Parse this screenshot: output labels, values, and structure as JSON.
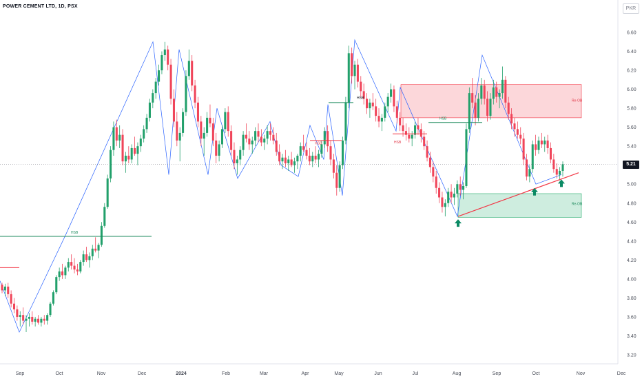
{
  "header": {
    "title": "POWER CEMENT LTD, 1D, PSX",
    "currency": "PKR",
    "last_price_label": "5.21"
  },
  "chart_data": {
    "type": "candlestick",
    "title": "POWER CEMENT LTD, 1D, PSX",
    "y_unit": "PKR",
    "ylim": [
      3.2,
      6.6
    ],
    "y_ticks": [
      "6.60",
      "6.40",
      "6.20",
      "6.00",
      "5.80",
      "5.60",
      "5.40",
      "5.20",
      "5.00",
      "4.80",
      "4.60",
      "4.40",
      "4.20",
      "4.00",
      "3.80",
      "3.60",
      "3.40",
      "3.20"
    ],
    "x_ticks": [
      "Sep",
      "Oct",
      "Nov",
      "Dec",
      "2024",
      "Feb",
      "Mar",
      "Apr",
      "May",
      "Jun",
      "Jul",
      "Aug",
      "Sep",
      "Oct",
      "Nov",
      "Dec"
    ],
    "last_price": 5.21,
    "colors": {
      "up": "#22a06b",
      "down": "#f0455a",
      "zigzag": "#2962ff"
    },
    "ohlc_series": [
      [
        3.94,
        3.96,
        3.85,
        3.88
      ],
      [
        3.88,
        3.95,
        3.82,
        3.92
      ],
      [
        3.92,
        3.96,
        3.8,
        3.84
      ],
      [
        3.84,
        3.88,
        3.7,
        3.74
      ],
      [
        3.74,
        3.8,
        3.64,
        3.68
      ],
      [
        3.68,
        3.72,
        3.56,
        3.6
      ],
      [
        3.6,
        3.66,
        3.5,
        3.62
      ],
      [
        3.62,
        3.7,
        3.52,
        3.56
      ],
      [
        3.56,
        3.62,
        3.44,
        3.58
      ],
      [
        3.58,
        3.64,
        3.5,
        3.6
      ],
      [
        3.6,
        3.66,
        3.52,
        3.55
      ],
      [
        3.55,
        3.6,
        3.5,
        3.58
      ],
      [
        3.58,
        3.62,
        3.52,
        3.54
      ],
      [
        3.54,
        3.6,
        3.5,
        3.58
      ],
      [
        3.58,
        3.62,
        3.52,
        3.56
      ],
      [
        3.56,
        3.64,
        3.52,
        3.62
      ],
      [
        3.62,
        3.76,
        3.6,
        3.74
      ],
      [
        3.74,
        3.88,
        3.72,
        3.86
      ],
      [
        3.86,
        4.04,
        3.84,
        4.02
      ],
      [
        4.02,
        4.12,
        3.98,
        4.08
      ],
      [
        4.08,
        4.16,
        4.0,
        4.04
      ],
      [
        4.04,
        4.14,
        4.0,
        4.12
      ],
      [
        4.12,
        4.22,
        4.08,
        4.18
      ],
      [
        4.18,
        4.26,
        4.1,
        4.14
      ],
      [
        4.14,
        4.22,
        4.06,
        4.1
      ],
      [
        4.1,
        4.16,
        4.04,
        4.08
      ],
      [
        4.08,
        4.2,
        4.06,
        4.18
      ],
      [
        4.18,
        4.3,
        4.14,
        4.26
      ],
      [
        4.26,
        4.34,
        4.18,
        4.2
      ],
      [
        4.2,
        4.28,
        4.12,
        4.24
      ],
      [
        4.24,
        4.36,
        4.2,
        4.32
      ],
      [
        4.32,
        4.44,
        4.28,
        4.3
      ],
      [
        4.3,
        4.38,
        4.22,
        4.36
      ],
      [
        4.36,
        4.6,
        4.34,
        4.56
      ],
      [
        4.56,
        4.8,
        4.54,
        4.76
      ],
      [
        4.76,
        5.1,
        4.74,
        5.06
      ],
      [
        5.06,
        5.4,
        5.02,
        5.36
      ],
      [
        5.36,
        5.66,
        5.3,
        5.6
      ],
      [
        5.6,
        5.68,
        5.4,
        5.46
      ],
      [
        5.46,
        5.62,
        5.38,
        5.52
      ],
      [
        5.52,
        5.58,
        5.2,
        5.24
      ],
      [
        5.24,
        5.34,
        5.12,
        5.3
      ],
      [
        5.3,
        5.4,
        5.22,
        5.26
      ],
      [
        5.26,
        5.42,
        5.22,
        5.38
      ],
      [
        5.38,
        5.5,
        5.3,
        5.32
      ],
      [
        5.32,
        5.44,
        5.2,
        5.4
      ],
      [
        5.4,
        5.52,
        5.34,
        5.48
      ],
      [
        5.48,
        5.62,
        5.44,
        5.58
      ],
      [
        5.58,
        5.74,
        5.54,
        5.7
      ],
      [
        5.7,
        5.9,
        5.66,
        5.86
      ],
      [
        5.86,
        6.0,
        5.8,
        5.96
      ],
      [
        5.96,
        6.12,
        5.9,
        6.08
      ],
      [
        6.08,
        6.26,
        6.04,
        6.2
      ],
      [
        6.2,
        6.4,
        6.16,
        6.36
      ],
      [
        6.36,
        6.5,
        6.3,
        6.42
      ],
      [
        6.42,
        6.46,
        6.2,
        6.26
      ],
      [
        6.26,
        6.32,
        5.84,
        5.9
      ],
      [
        5.9,
        6.0,
        5.6,
        5.66
      ],
      [
        5.66,
        5.76,
        5.4,
        5.46
      ],
      [
        5.46,
        5.6,
        5.24,
        5.54
      ],
      [
        5.54,
        5.8,
        5.5,
        5.76
      ],
      [
        5.76,
        6.2,
        5.72,
        6.14
      ],
      [
        6.14,
        6.42,
        6.1,
        6.3
      ],
      [
        6.3,
        6.36,
        5.98,
        6.04
      ],
      [
        6.04,
        6.1,
        5.8,
        5.86
      ],
      [
        5.86,
        5.92,
        5.6,
        5.66
      ],
      [
        5.66,
        5.72,
        5.4,
        5.48
      ],
      [
        5.48,
        5.6,
        5.3,
        5.54
      ],
      [
        5.54,
        5.76,
        5.5,
        5.7
      ],
      [
        5.7,
        5.84,
        5.6,
        5.64
      ],
      [
        5.64,
        5.7,
        5.4,
        5.46
      ],
      [
        5.46,
        5.54,
        5.22,
        5.3
      ],
      [
        5.3,
        5.46,
        5.24,
        5.42
      ],
      [
        5.42,
        5.62,
        5.38,
        5.58
      ],
      [
        5.58,
        5.8,
        5.54,
        5.76
      ],
      [
        5.76,
        5.82,
        5.5,
        5.56
      ],
      [
        5.56,
        5.62,
        5.3,
        5.36
      ],
      [
        5.36,
        5.44,
        5.16,
        5.22
      ],
      [
        5.22,
        5.3,
        5.1,
        5.26
      ],
      [
        5.26,
        5.4,
        5.2,
        5.36
      ],
      [
        5.36,
        5.56,
        5.3,
        5.52
      ],
      [
        5.52,
        5.64,
        5.44,
        5.48
      ],
      [
        5.48,
        5.56,
        5.36,
        5.42
      ],
      [
        5.42,
        5.5,
        5.32,
        5.46
      ],
      [
        5.46,
        5.6,
        5.4,
        5.56
      ],
      [
        5.56,
        5.64,
        5.44,
        5.5
      ],
      [
        5.5,
        5.58,
        5.4,
        5.44
      ],
      [
        5.44,
        5.52,
        5.36,
        5.48
      ],
      [
        5.48,
        5.62,
        5.42,
        5.56
      ],
      [
        5.56,
        5.64,
        5.46,
        5.52
      ],
      [
        5.52,
        5.6,
        5.42,
        5.46
      ],
      [
        5.46,
        5.54,
        5.3,
        5.34
      ],
      [
        5.34,
        5.42,
        5.2,
        5.24
      ],
      [
        5.24,
        5.32,
        5.16,
        5.28
      ],
      [
        5.28,
        5.36,
        5.18,
        5.22
      ],
      [
        5.22,
        5.3,
        5.14,
        5.26
      ],
      [
        5.26,
        5.34,
        5.18,
        5.2
      ],
      [
        5.2,
        5.28,
        5.12,
        5.24
      ],
      [
        5.24,
        5.32,
        5.16,
        5.3
      ],
      [
        5.3,
        5.44,
        5.24,
        5.4
      ],
      [
        5.4,
        5.52,
        5.34,
        5.36
      ],
      [
        5.36,
        5.44,
        5.26,
        5.3
      ],
      [
        5.3,
        5.38,
        5.2,
        5.24
      ],
      [
        5.24,
        5.34,
        5.18,
        5.3
      ],
      [
        5.3,
        5.4,
        5.22,
        5.26
      ],
      [
        5.26,
        5.36,
        5.18,
        5.32
      ],
      [
        5.32,
        5.46,
        5.28,
        5.42
      ],
      [
        5.42,
        5.6,
        5.38,
        5.56
      ],
      [
        5.56,
        5.62,
        5.34,
        5.4
      ],
      [
        5.4,
        5.46,
        5.2,
        5.26
      ],
      [
        5.26,
        5.32,
        5.06,
        5.12
      ],
      [
        5.12,
        5.2,
        4.88,
        4.96
      ],
      [
        4.96,
        5.24,
        4.92,
        5.2
      ],
      [
        5.2,
        5.5,
        5.16,
        5.46
      ],
      [
        5.46,
        5.92,
        5.42,
        5.86
      ],
      [
        5.86,
        6.46,
        5.8,
        6.38
      ],
      [
        6.38,
        6.44,
        6.06,
        6.14
      ],
      [
        6.14,
        6.3,
        6.0,
        6.26
      ],
      [
        6.26,
        6.32,
        6.02,
        6.08
      ],
      [
        6.08,
        6.14,
        5.92,
        5.98
      ],
      [
        5.98,
        6.06,
        5.84,
        5.9
      ],
      [
        5.9,
        5.96,
        5.74,
        5.8
      ],
      [
        5.8,
        5.9,
        5.7,
        5.86
      ],
      [
        5.86,
        5.96,
        5.78,
        5.82
      ],
      [
        5.82,
        5.9,
        5.66,
        5.72
      ],
      [
        5.72,
        5.8,
        5.6,
        5.66
      ],
      [
        5.66,
        5.74,
        5.56,
        5.7
      ],
      [
        5.7,
        5.86,
        5.66,
        5.82
      ],
      [
        5.82,
        5.96,
        5.76,
        5.92
      ],
      [
        5.92,
        6.06,
        5.86,
        6.0
      ],
      [
        6.0,
        6.04,
        5.76,
        5.82
      ],
      [
        5.82,
        5.88,
        5.64,
        5.7
      ],
      [
        5.7,
        5.76,
        5.56,
        5.62
      ],
      [
        5.62,
        5.7,
        5.5,
        5.56
      ],
      [
        5.56,
        5.64,
        5.46,
        5.52
      ],
      [
        5.52,
        5.6,
        5.44,
        5.48
      ],
      [
        5.48,
        5.56,
        5.4,
        5.52
      ],
      [
        5.52,
        5.66,
        5.48,
        5.62
      ],
      [
        5.62,
        5.7,
        5.52,
        5.58
      ],
      [
        5.58,
        5.64,
        5.44,
        5.5
      ],
      [
        5.5,
        5.56,
        5.36,
        5.4
      ],
      [
        5.4,
        5.46,
        5.24,
        5.28
      ],
      [
        5.28,
        5.34,
        5.12,
        5.18
      ],
      [
        5.18,
        5.24,
        5.02,
        5.08
      ],
      [
        5.08,
        5.14,
        4.9,
        4.96
      ],
      [
        4.96,
        5.02,
        4.8,
        4.86
      ],
      [
        4.86,
        4.92,
        4.7,
        4.76
      ],
      [
        4.76,
        4.84,
        4.66,
        4.8
      ],
      [
        4.8,
        4.96,
        4.76,
        4.92
      ],
      [
        4.92,
        5.0,
        4.8,
        4.86
      ],
      [
        4.86,
        4.96,
        4.78,
        4.9
      ],
      [
        4.9,
        5.04,
        4.86,
        5.0
      ],
      [
        5.0,
        5.08,
        4.88,
        4.94
      ],
      [
        4.94,
        5.02,
        4.84,
        4.98
      ],
      [
        4.98,
        5.64,
        4.96,
        5.58
      ],
      [
        5.58,
        6.02,
        5.54,
        5.96
      ],
      [
        5.96,
        6.12,
        5.8,
        5.86
      ],
      [
        5.86,
        5.94,
        5.62,
        5.7
      ],
      [
        5.7,
        5.96,
        5.66,
        5.9
      ],
      [
        5.9,
        6.12,
        5.84,
        6.04
      ],
      [
        6.04,
        6.1,
        5.84,
        5.9
      ],
      [
        5.9,
        5.98,
        5.66,
        5.72
      ],
      [
        5.72,
        5.96,
        5.68,
        5.9
      ],
      [
        5.9,
        6.1,
        5.84,
        6.02
      ],
      [
        6.02,
        6.08,
        5.86,
        5.92
      ],
      [
        5.92,
        6.0,
        5.8,
        5.96
      ],
      [
        5.96,
        6.24,
        5.9,
        6.1
      ],
      [
        6.1,
        6.14,
        5.8,
        5.86
      ],
      [
        5.86,
        5.92,
        5.68,
        5.74
      ],
      [
        5.74,
        5.8,
        5.58,
        5.64
      ],
      [
        5.64,
        5.7,
        5.5,
        5.58
      ],
      [
        5.58,
        5.66,
        5.48,
        5.52
      ],
      [
        5.52,
        5.6,
        5.42,
        5.48
      ],
      [
        5.48,
        5.54,
        5.2,
        5.26
      ],
      [
        5.26,
        5.32,
        5.04,
        5.08
      ],
      [
        5.08,
        5.2,
        5.02,
        5.16
      ],
      [
        5.16,
        5.46,
        5.12,
        5.42
      ],
      [
        5.42,
        5.52,
        5.3,
        5.36
      ],
      [
        5.36,
        5.5,
        5.32,
        5.46
      ],
      [
        5.46,
        5.54,
        5.38,
        5.42
      ],
      [
        5.42,
        5.5,
        5.34,
        5.46
      ],
      [
        5.46,
        5.52,
        5.32,
        5.38
      ],
      [
        5.38,
        5.44,
        5.22,
        5.26
      ],
      [
        5.26,
        5.32,
        5.12,
        5.16
      ],
      [
        5.16,
        5.22,
        5.06,
        5.1
      ],
      [
        5.1,
        5.18,
        5.04,
        5.14
      ],
      [
        5.14,
        5.24,
        5.08,
        5.21
      ]
    ],
    "pattern_labels": [
      "HSB",
      "HSB",
      "HSB",
      "HSB",
      "HSB"
    ],
    "zone_labels": [
      "Re-OB",
      "Re-OB"
    ]
  }
}
